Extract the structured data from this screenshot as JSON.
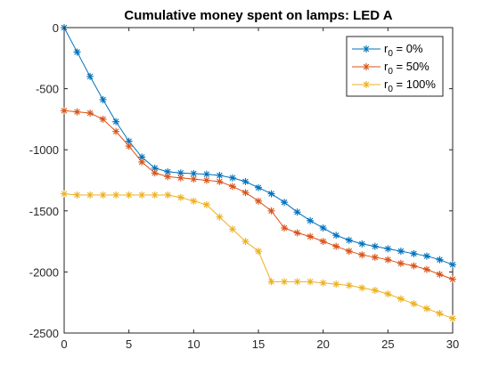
{
  "chart_data": {
    "type": "line",
    "title": "Cumulative money spent on lamps: LED A",
    "xlabel": "",
    "ylabel": "",
    "xlim": [
      0,
      30
    ],
    "ylim": [
      -2500,
      0
    ],
    "xticks": [
      0,
      5,
      10,
      15,
      20,
      25,
      30
    ],
    "yticks": [
      0,
      -500,
      -1000,
      -1500,
      -2000,
      -2500
    ],
    "grid": false,
    "legend_position": "top-right",
    "marker": "asterisk",
    "x": [
      0,
      1,
      2,
      3,
      4,
      5,
      6,
      7,
      8,
      9,
      10,
      11,
      12,
      13,
      14,
      15,
      16,
      17,
      18,
      19,
      20,
      21,
      22,
      23,
      24,
      25,
      26,
      27,
      28,
      29,
      30
    ],
    "series": [
      {
        "name_prefix": "r",
        "name_subscript": "0",
        "name_suffix": " = 0%",
        "color": "#0072BD",
        "values": [
          0,
          -200,
          -400,
          -590,
          -770,
          -930,
          -1060,
          -1150,
          -1180,
          -1190,
          -1195,
          -1200,
          -1210,
          -1230,
          -1260,
          -1310,
          -1360,
          -1430,
          -1510,
          -1580,
          -1640,
          -1700,
          -1740,
          -1770,
          -1790,
          -1810,
          -1830,
          -1850,
          -1870,
          -1900,
          -1940
        ]
      },
      {
        "name_prefix": "r",
        "name_subscript": "0",
        "name_suffix": " = 50%",
        "color": "#D95319",
        "values": [
          -680,
          -690,
          -700,
          -750,
          -850,
          -970,
          -1100,
          -1190,
          -1220,
          -1230,
          -1240,
          -1250,
          -1260,
          -1300,
          -1350,
          -1420,
          -1500,
          -1640,
          -1680,
          -1710,
          -1750,
          -1790,
          -1830,
          -1860,
          -1880,
          -1900,
          -1930,
          -1950,
          -1980,
          -2020,
          -2060
        ]
      },
      {
        "name_prefix": "r",
        "name_subscript": "0",
        "name_suffix": " = 100%",
        "color": "#EDB120",
        "values": [
          -1360,
          -1370,
          -1370,
          -1370,
          -1370,
          -1370,
          -1370,
          -1370,
          -1370,
          -1390,
          -1420,
          -1450,
          -1550,
          -1650,
          -1750,
          -1830,
          -2080,
          -2080,
          -2080,
          -2080,
          -2090,
          -2100,
          -2110,
          -2130,
          -2150,
          -2180,
          -2220,
          -2260,
          -2300,
          -2340,
          -2380
        ]
      }
    ]
  }
}
